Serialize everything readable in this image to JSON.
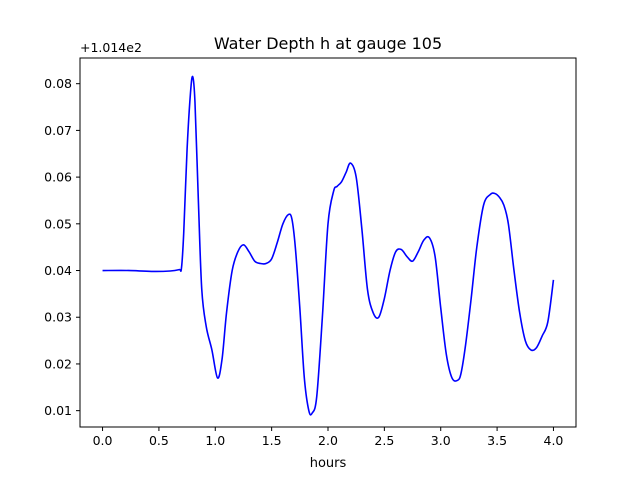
{
  "chart_data": {
    "type": "line",
    "title": "Water Depth h at gauge 105",
    "xlabel": "hours",
    "ylabel": "",
    "offset_label": "+1.014e2",
    "xlim": [
      -0.2,
      4.2
    ],
    "ylim": [
      0.0065,
      0.0855
    ],
    "xticks": [
      0.0,
      0.5,
      1.0,
      1.5,
      2.0,
      2.5,
      3.0,
      3.5,
      4.0
    ],
    "xtick_labels": [
      "0.0",
      "0.5",
      "1.0",
      "1.5",
      "2.0",
      "2.5",
      "3.0",
      "3.5",
      "4.0"
    ],
    "yticks": [
      0.01,
      0.02,
      0.03,
      0.04,
      0.05,
      0.06,
      0.07,
      0.08
    ],
    "ytick_labels": [
      "0.01",
      "0.02",
      "0.03",
      "0.04",
      "0.05",
      "0.06",
      "0.07",
      "0.08"
    ],
    "grid": false,
    "legend": "none",
    "series": [
      {
        "color": "#0000ff",
        "x": [
          0.0,
          0.25,
          0.45,
          0.6,
          0.68,
          0.7,
          0.72,
          0.75,
          0.78,
          0.8,
          0.82,
          0.85,
          0.88,
          0.92,
          0.97,
          1.02,
          1.06,
          1.1,
          1.15,
          1.2,
          1.25,
          1.3,
          1.35,
          1.4,
          1.45,
          1.5,
          1.55,
          1.6,
          1.65,
          1.68,
          1.71,
          1.75,
          1.79,
          1.83,
          1.86,
          1.9,
          1.95,
          2.0,
          2.05,
          2.08,
          2.12,
          2.16,
          2.2,
          2.25,
          2.3,
          2.35,
          2.4,
          2.45,
          2.5,
          2.55,
          2.6,
          2.65,
          2.7,
          2.75,
          2.8,
          2.85,
          2.9,
          2.95,
          3.0,
          3.05,
          3.1,
          3.15,
          3.18,
          3.22,
          3.27,
          3.32,
          3.38,
          3.44,
          3.48,
          3.52,
          3.56,
          3.6,
          3.65,
          3.7,
          3.75,
          3.8,
          3.85,
          3.9,
          3.95,
          4.0
        ],
        "values": [
          0.04,
          0.04,
          0.0398,
          0.0399,
          0.0402,
          0.0405,
          0.048,
          0.066,
          0.078,
          0.0815,
          0.076,
          0.055,
          0.036,
          0.028,
          0.023,
          0.017,
          0.021,
          0.031,
          0.04,
          0.044,
          0.0455,
          0.044,
          0.042,
          0.0415,
          0.0415,
          0.0425,
          0.046,
          0.05,
          0.052,
          0.051,
          0.045,
          0.032,
          0.017,
          0.01,
          0.0095,
          0.013,
          0.03,
          0.05,
          0.057,
          0.058,
          0.059,
          0.061,
          0.063,
          0.06,
          0.049,
          0.036,
          0.031,
          0.03,
          0.034,
          0.04,
          0.044,
          0.0445,
          0.043,
          0.042,
          0.044,
          0.0465,
          0.047,
          0.043,
          0.032,
          0.022,
          0.017,
          0.0165,
          0.018,
          0.024,
          0.034,
          0.045,
          0.054,
          0.0563,
          0.0565,
          0.0557,
          0.054,
          0.05,
          0.04,
          0.031,
          0.025,
          0.023,
          0.0235,
          0.026,
          0.029,
          0.038
        ]
      }
    ]
  }
}
